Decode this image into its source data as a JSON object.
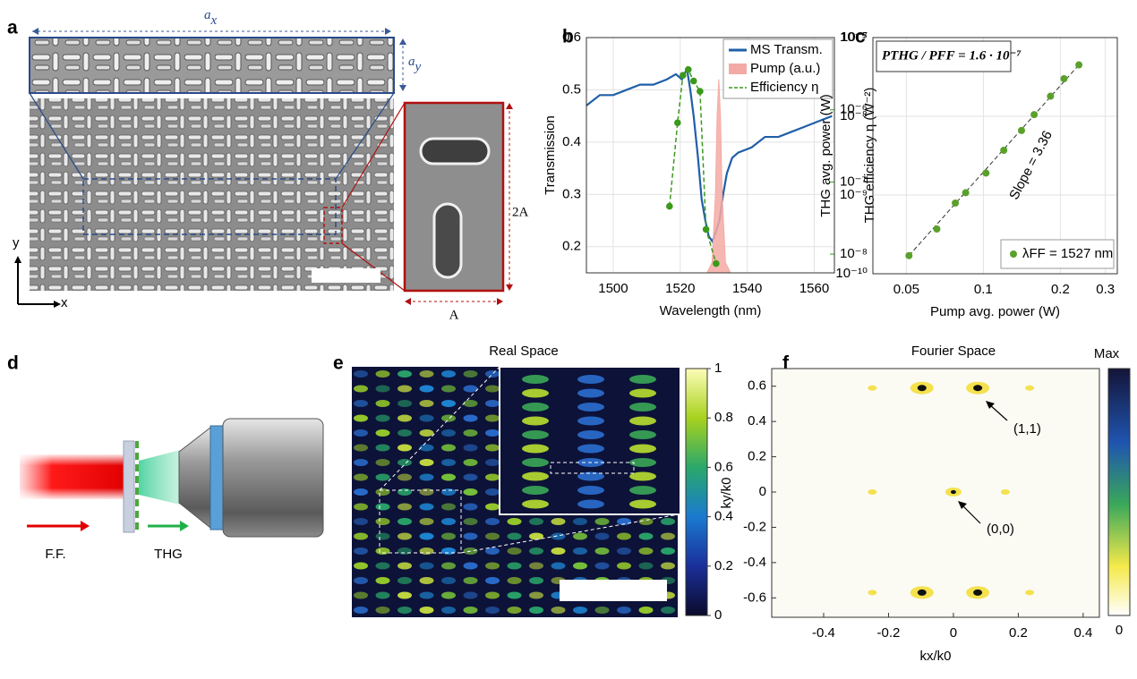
{
  "panels": {
    "a": {
      "label": "a",
      "ax": {
        "base": "a",
        "sub": "x"
      },
      "ay": {
        "base": "a",
        "sub": "y"
      },
      "axis_y": "y",
      "axis_x": "x",
      "inset_height": "2A",
      "inset_width": "A"
    },
    "d": {
      "label": "d",
      "beam_in": "F.F.",
      "beam_out": "THG"
    }
  },
  "chart_data": [
    {
      "type": "spectrum",
      "label": "b",
      "xlabel": "Wavelength (nm)",
      "ylabel": "Transmission",
      "y2label": "THG efficiency η (W⁻²)",
      "xlim": [
        1492,
        1566
      ],
      "xticks": [
        1500,
        1520,
        1540,
        1560
      ],
      "ylim": [
        0.15,
        0.6
      ],
      "yticks": [
        0.2,
        0.3,
        0.4,
        0.5,
        0.6
      ],
      "y2lim": [
        5.5e-09,
        1e-05
      ],
      "y2scale": "log",
      "y2ticks": [
        {
          "value": 1e-08,
          "label": "10⁻⁸"
        },
        {
          "value": 1e-07,
          "label": "10⁻⁷"
        },
        {
          "value": 1e-06,
          "label": "10⁻⁶"
        },
        {
          "value": 1e-05,
          "label": "10⁻⁵"
        }
      ],
      "grid": true,
      "legend": "upper right",
      "series": [
        {
          "name": "MS Transm.",
          "color": "#1f5fa8",
          "style": "line",
          "x": [
            1492,
            1496,
            1500,
            1504,
            1508,
            1512,
            1516,
            1518.7,
            1520.5,
            1522,
            1523,
            1524,
            1525.3,
            1526.4,
            1527.5,
            1528.5,
            1529.6,
            1530.7,
            1531.7,
            1532.8,
            1533.9,
            1535.5,
            1537.3,
            1541.3,
            1545.3,
            1549.3,
            1553.3,
            1557.3,
            1561.3,
            1565.3
          ],
          "values": [
            0.47,
            0.49,
            0.49,
            0.5,
            0.51,
            0.51,
            0.52,
            0.53,
            0.52,
            0.54,
            0.5,
            0.45,
            0.37,
            0.29,
            0.25,
            0.22,
            0.21,
            0.23,
            0.25,
            0.3,
            0.34,
            0.37,
            0.38,
            0.39,
            0.41,
            0.41,
            0.42,
            0.43,
            0.44,
            0.45
          ]
        },
        {
          "name": "Pump (a.u.)",
          "color": "#f4aaa4",
          "style": "area",
          "x": [
            1492,
            1528,
            1529.5,
            1530.5,
            1531,
            1531.5,
            1532,
            1532.5,
            1533.5,
            1535,
            1566
          ],
          "values": [
            0.15,
            0.15,
            0.17,
            0.3,
            0.45,
            0.52,
            0.45,
            0.3,
            0.17,
            0.15,
            0.15
          ]
        },
        {
          "name": "Efficiency η",
          "color": "#3a9a1a",
          "style": "dashed-markers",
          "axis": "y2",
          "x": [
            1516.8,
            1519.2,
            1520.8,
            1522.4,
            1524,
            1525.9,
            1527.7,
            1530.7
          ],
          "values": [
            4.6e-08,
            6.6e-07,
            3e-06,
            3.6e-06,
            2.5e-06,
            1.8e-06,
            2.2e-08,
            7.4e-09
          ]
        }
      ]
    },
    {
      "type": "loglog",
      "label": "c",
      "xlabel": "Pump avg. power (W)",
      "ylabel": "THG avg. power (W)",
      "xscale": "log",
      "yscale": "log",
      "xlim": [
        0.037,
        0.334
      ],
      "xticks": [
        0.05,
        0.1,
        0.2,
        0.3
      ],
      "ylim": [
        1e-10,
        1e-07
      ],
      "yticks": [
        {
          "value": 1e-10,
          "label": "10⁻¹⁰"
        },
        {
          "value": 1e-09,
          "label": "10⁻⁹"
        },
        {
          "value": 1e-08,
          "label": "10⁻⁸"
        },
        {
          "value": 1e-07,
          "label": "10⁻⁷"
        }
      ],
      "grid": true,
      "legend": "lower right",
      "annotations": [
        "PTHG / PFF = 1.6 · 10⁻⁷",
        "Slope = 3.36"
      ],
      "series": [
        {
          "name": "λFF = 1527 nm",
          "color": "#5aa02c",
          "x": [
            0.0512,
            0.0658,
            0.0777,
            0.0853,
            0.1024,
            0.1202,
            0.141,
            0.158,
            0.183,
            0.2067,
            0.2364
          ],
          "values": [
            1.7e-10,
            3.7e-10,
            7.9e-10,
            1.07e-09,
            1.9e-09,
            3.7e-09,
            6.6e-09,
            1.05e-08,
            1.8e-08,
            3e-08,
            4.5e-08
          ]
        }
      ]
    },
    {
      "type": "heatmap",
      "label": "e",
      "title": "Real Space",
      "clim": [
        0,
        1
      ],
      "cticks": [
        0,
        0.2,
        0.4,
        0.6,
        0.8,
        1
      ]
    },
    {
      "type": "peaks",
      "label": "f",
      "title": "Fourier Space",
      "xlabel": "kx/k0",
      "ylabel": "ky/k0",
      "xlim": [
        -0.56,
        0.45
      ],
      "xticks": [
        -0.4,
        -0.2,
        0,
        0.2,
        0.4
      ],
      "ylim": [
        -0.71,
        0.7
      ],
      "yticks": [
        -0.6,
        -0.4,
        -0.2,
        0,
        0.2,
        0.4,
        0.6
      ],
      "colorbar_labels": [
        "Max",
        "0"
      ],
      "annotations": [
        "(1,1)",
        "(0,0)"
      ],
      "x": [
        -0.25,
        -0.097,
        0.075,
        0.235,
        -0.25,
        0,
        0.16,
        -0.25,
        -0.097,
        0.075,
        0.235
      ],
      "values": [
        0.59,
        0.59,
        0.59,
        0.59,
        0,
        0,
        0,
        -0.57,
        -0.57,
        -0.57,
        -0.57
      ],
      "intensity": [
        0.2,
        1,
        1,
        0.2,
        0.2,
        0.6,
        0.2,
        0.2,
        1,
        1,
        0.2
      ]
    }
  ]
}
